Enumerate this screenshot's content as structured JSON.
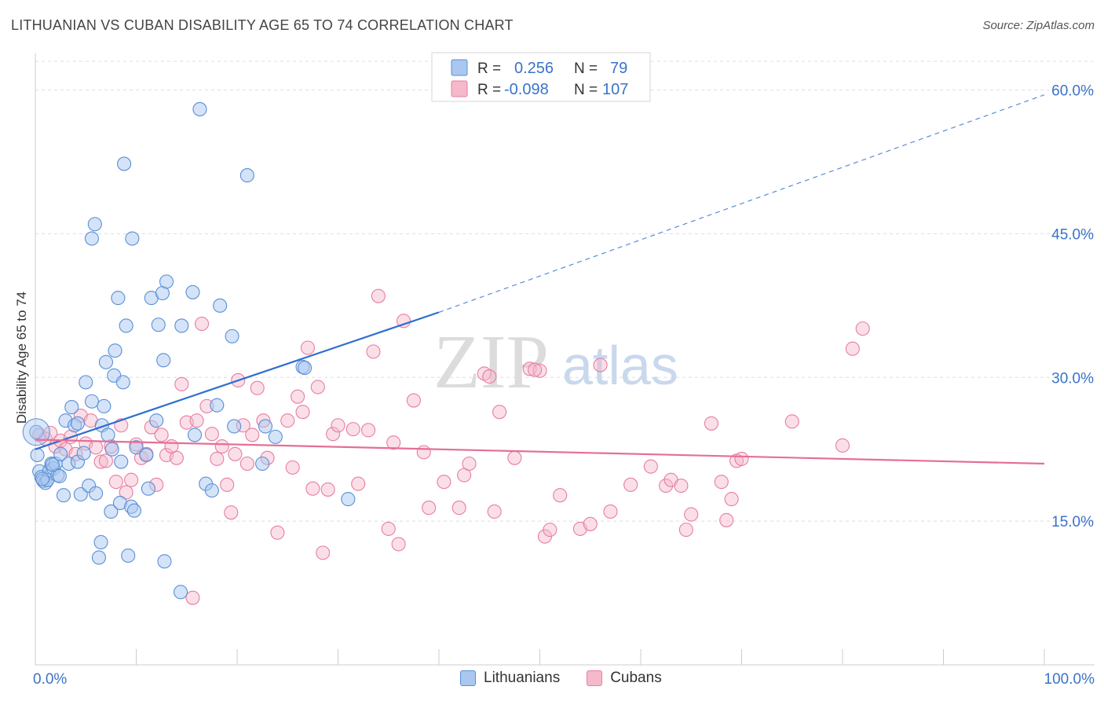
{
  "title": "LITHUANIAN VS CUBAN DISABILITY AGE 65 TO 74 CORRELATION CHART",
  "source": "Source: ZipAtlas.com",
  "watermark": {
    "zip": "ZIP",
    "atlas": "atlas"
  },
  "colors": {
    "lithuanians_fill": "#a9c7ef",
    "lithuanians_stroke": "#5a8fd6",
    "lithuanians_line": "#2f6fd1",
    "cubans_fill": "#f5b9cb",
    "cubans_stroke": "#e77ea0",
    "cubans_line": "#e46f97",
    "axis_label": "#3a73c9",
    "grid": "#dddddd"
  },
  "stats_legend": [
    {
      "r_label": "R =",
      "r_value": "0.256",
      "n_label": "N =",
      "n_value": "79"
    },
    {
      "r_label": "R =",
      "r_value": "-0.098",
      "n_label": "N =",
      "n_value": "107"
    }
  ],
  "bottom_legend": [
    "Lithuanians",
    "Cubans"
  ],
  "chart_data": {
    "type": "scatter",
    "title": "LITHUANIAN VS CUBAN DISABILITY AGE 65 TO 74 CORRELATION CHART",
    "xlabel": "",
    "ylabel": "Disability Age 65 to 74",
    "xlim": [
      0,
      100
    ],
    "ylim": [
      0,
      63
    ],
    "x_tick_labels": [
      "0.0%",
      "100.0%"
    ],
    "y_ticks": [
      15,
      30,
      45,
      60
    ],
    "y_tick_labels": [
      "15.0%",
      "30.0%",
      "45.0%",
      "60.0%"
    ],
    "grid": true,
    "legend_position": "top-center",
    "series": [
      {
        "name": "Lithuanians",
        "r": 0.256,
        "n": 79,
        "trend": {
          "x0": 0,
          "y0": 22.5,
          "x1": 40,
          "y1": 36.8,
          "dashed_to_x": 100,
          "dashed_to_y": 59.5
        },
        "points": [
          [
            0.1,
            24.3
          ],
          [
            0.2,
            21.9
          ],
          [
            0.4,
            20.2
          ],
          [
            0.6,
            19.6
          ],
          [
            0.8,
            19.2
          ],
          [
            1.0,
            19.0
          ],
          [
            1.2,
            19.3
          ],
          [
            1.4,
            20.3
          ],
          [
            1.6,
            21.0
          ],
          [
            1.8,
            20.5
          ],
          [
            2.0,
            21.0
          ],
          [
            2.2,
            19.8
          ],
          [
            2.5,
            22.0
          ],
          [
            2.8,
            17.7
          ],
          [
            3.0,
            25.5
          ],
          [
            3.3,
            21.0
          ],
          [
            3.6,
            26.9
          ],
          [
            3.9,
            25.0
          ],
          [
            4.2,
            21.2
          ],
          [
            4.5,
            17.8
          ],
          [
            4.8,
            22.1
          ],
          [
            5.0,
            29.5
          ],
          [
            5.3,
            18.7
          ],
          [
            5.6,
            27.5
          ],
          [
            6.0,
            17.9
          ],
          [
            6.5,
            12.8
          ],
          [
            6.3,
            11.2
          ],
          [
            6.6,
            25.0
          ],
          [
            6.8,
            27.0
          ],
          [
            7.0,
            31.6
          ],
          [
            7.2,
            24.0
          ],
          [
            7.5,
            16.0
          ],
          [
            7.6,
            22.5
          ],
          [
            7.8,
            30.2
          ],
          [
            7.9,
            32.8
          ],
          [
            8.2,
            38.3
          ],
          [
            8.4,
            16.9
          ],
          [
            8.5,
            21.2
          ],
          [
            8.7,
            29.5
          ],
          [
            8.8,
            52.3
          ],
          [
            9.0,
            35.4
          ],
          [
            9.2,
            11.4
          ],
          [
            9.5,
            16.5
          ],
          [
            9.6,
            44.5
          ],
          [
            9.8,
            16.1
          ],
          [
            10.0,
            22.7
          ],
          [
            11.0,
            21.9
          ],
          [
            11.2,
            18.4
          ],
          [
            11.5,
            38.3
          ],
          [
            12.0,
            25.5
          ],
          [
            12.2,
            35.5
          ],
          [
            12.6,
            38.8
          ],
          [
            12.7,
            31.8
          ],
          [
            12.8,
            10.8
          ],
          [
            13.0,
            40.0
          ],
          [
            14.4,
            7.6
          ],
          [
            14.5,
            35.4
          ],
          [
            15.6,
            38.9
          ],
          [
            15.8,
            24.0
          ],
          [
            16.3,
            58.0
          ],
          [
            16.9,
            18.9
          ],
          [
            17.5,
            18.2
          ],
          [
            18.0,
            27.1
          ],
          [
            18.3,
            37.5
          ],
          [
            19.5,
            34.3
          ],
          [
            19.7,
            24.9
          ],
          [
            21.0,
            51.1
          ],
          [
            22.8,
            24.9
          ],
          [
            22.5,
            21.0
          ],
          [
            23.8,
            23.8
          ],
          [
            26.5,
            31.1
          ],
          [
            26.7,
            31.0
          ],
          [
            31.0,
            17.3
          ],
          [
            4.2,
            25.2
          ],
          [
            1.7,
            20.9
          ],
          [
            2.4,
            19.7
          ],
          [
            5.9,
            46.0
          ],
          [
            5.6,
            44.5
          ],
          [
            0.7,
            19.4
          ]
        ]
      },
      {
        "name": "Cubans",
        "r": -0.098,
        "n": 107,
        "trend": {
          "x0": 0,
          "y0": 23.5,
          "x1": 100,
          "y1": 21.0
        },
        "points": [
          [
            0.4,
            24.0
          ],
          [
            1.0,
            23.6
          ],
          [
            1.5,
            24.2
          ],
          [
            2.0,
            22.8
          ],
          [
            2.5,
            23.4
          ],
          [
            3.0,
            22.5
          ],
          [
            3.5,
            23.8
          ],
          [
            4.0,
            22.0
          ],
          [
            4.5,
            26.0
          ],
          [
            5.0,
            23.1
          ],
          [
            5.5,
            25.5
          ],
          [
            6.0,
            22.7
          ],
          [
            6.5,
            21.2
          ],
          [
            7.0,
            21.3
          ],
          [
            7.5,
            22.8
          ],
          [
            8.0,
            19.1
          ],
          [
            8.5,
            25.0
          ],
          [
            9.0,
            18.0
          ],
          [
            9.5,
            19.3
          ],
          [
            10.0,
            23.0
          ],
          [
            10.5,
            21.6
          ],
          [
            11.0,
            22.0
          ],
          [
            11.5,
            24.8
          ],
          [
            12.0,
            18.8
          ],
          [
            12.5,
            24.0
          ],
          [
            13.0,
            21.9
          ],
          [
            13.5,
            22.8
          ],
          [
            14.0,
            21.6
          ],
          [
            14.5,
            29.3
          ],
          [
            15.0,
            25.3
          ],
          [
            15.6,
            7.0
          ],
          [
            16.0,
            25.5
          ],
          [
            16.5,
            35.6
          ],
          [
            17.0,
            27.0
          ],
          [
            17.5,
            24.1
          ],
          [
            18.0,
            21.5
          ],
          [
            18.5,
            22.8
          ],
          [
            19.0,
            18.8
          ],
          [
            19.4,
            15.9
          ],
          [
            19.8,
            22.0
          ],
          [
            20.1,
            29.7
          ],
          [
            20.6,
            25.0
          ],
          [
            21.0,
            21.0
          ],
          [
            21.5,
            24.0
          ],
          [
            22.0,
            28.9
          ],
          [
            22.6,
            25.5
          ],
          [
            23.0,
            21.6
          ],
          [
            24.0,
            13.8
          ],
          [
            25.0,
            25.5
          ],
          [
            25.5,
            20.6
          ],
          [
            26.0,
            28.0
          ],
          [
            26.5,
            26.4
          ],
          [
            27.0,
            33.1
          ],
          [
            27.5,
            18.4
          ],
          [
            28.0,
            29.0
          ],
          [
            28.5,
            11.7
          ],
          [
            29.0,
            18.3
          ],
          [
            29.5,
            24.1
          ],
          [
            30.0,
            25.0
          ],
          [
            31.5,
            24.6
          ],
          [
            32.0,
            18.9
          ],
          [
            33.0,
            24.5
          ],
          [
            33.5,
            32.7
          ],
          [
            34.0,
            38.5
          ],
          [
            35.0,
            14.2
          ],
          [
            35.5,
            23.2
          ],
          [
            36.0,
            12.6
          ],
          [
            36.5,
            35.9
          ],
          [
            37.5,
            27.6
          ],
          [
            38.5,
            22.2
          ],
          [
            39.0,
            16.4
          ],
          [
            40.5,
            19.1
          ],
          [
            42.0,
            16.4
          ],
          [
            42.5,
            19.8
          ],
          [
            43.0,
            21.0
          ],
          [
            44.5,
            30.4
          ],
          [
            45.0,
            30.1
          ],
          [
            45.5,
            16.0
          ],
          [
            46.0,
            26.4
          ],
          [
            47.5,
            21.6
          ],
          [
            49.0,
            30.9
          ],
          [
            50.0,
            30.7
          ],
          [
            50.5,
            13.4
          ],
          [
            51.0,
            14.1
          ],
          [
            52.0,
            17.7
          ],
          [
            54.0,
            14.2
          ],
          [
            55.0,
            14.7
          ],
          [
            56.0,
            31.3
          ],
          [
            57.0,
            16.0
          ],
          [
            59.0,
            18.8
          ],
          [
            61.0,
            20.7
          ],
          [
            62.5,
            18.7
          ],
          [
            63.0,
            19.3
          ],
          [
            64.0,
            18.7
          ],
          [
            64.5,
            14.1
          ],
          [
            65.0,
            15.7
          ],
          [
            67.0,
            25.2
          ],
          [
            68.0,
            19.1
          ],
          [
            68.5,
            15.1
          ],
          [
            69.0,
            17.3
          ],
          [
            69.5,
            21.3
          ],
          [
            70.0,
            21.5
          ],
          [
            75.0,
            25.4
          ],
          [
            80.0,
            22.9
          ],
          [
            81.0,
            33.0
          ],
          [
            82.0,
            35.1
          ],
          [
            49.5,
            30.8
          ]
        ]
      }
    ]
  }
}
